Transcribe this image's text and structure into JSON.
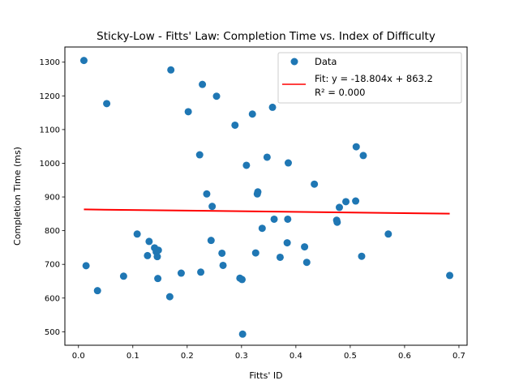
{
  "chart_data": {
    "type": "scatter",
    "title": "Sticky-Low - Fitts' Law: Completion Time vs. Index of Difficulty",
    "xlabel": "Fitts' ID",
    "ylabel": "Completion Time (ms)",
    "xlim": [
      -0.025,
      0.715
    ],
    "ylim": [
      460,
      1345
    ],
    "xticks": [
      0.0,
      0.1,
      0.2,
      0.3,
      0.4,
      0.5,
      0.6,
      0.7
    ],
    "xtick_labels": [
      "0.0",
      "0.1",
      "0.2",
      "0.3",
      "0.4",
      "0.5",
      "0.6",
      "0.7"
    ],
    "yticks": [
      500,
      600,
      700,
      800,
      900,
      1000,
      1100,
      1200,
      1300
    ],
    "ytick_labels": [
      "500",
      "600",
      "700",
      "800",
      "900",
      "1000",
      "1100",
      "1200",
      "1300"
    ],
    "grid": false,
    "legend_position": "top-right",
    "colors": {
      "data": "#1f77b4",
      "fit": "#ff0000"
    },
    "series": [
      {
        "name": "Data",
        "kind": "scatter",
        "x": [
          0.01,
          0.014,
          0.035,
          0.052,
          0.083,
          0.108,
          0.127,
          0.13,
          0.14,
          0.143,
          0.145,
          0.146,
          0.147,
          0.168,
          0.17,
          0.189,
          0.202,
          0.223,
          0.225,
          0.228,
          0.236,
          0.244,
          0.246,
          0.254,
          0.264,
          0.266,
          0.288,
          0.297,
          0.301,
          0.302,
          0.309,
          0.32,
          0.326,
          0.329,
          0.33,
          0.338,
          0.347,
          0.357,
          0.36,
          0.371,
          0.384,
          0.385,
          0.386,
          0.416,
          0.42,
          0.434,
          0.475,
          0.476,
          0.48,
          0.492,
          0.51,
          0.511,
          0.521,
          0.524,
          0.57,
          0.683
        ],
        "y": [
          1305,
          696,
          622,
          1177,
          665,
          790,
          726,
          768,
          749,
          737,
          723,
          658,
          742,
          604,
          1277,
          674,
          1153,
          1025,
          677,
          1234,
          909,
          771,
          872,
          1199,
          733,
          697,
          1113,
          659,
          655,
          493,
          994,
          1146,
          734,
          909,
          915,
          807,
          1018,
          1166,
          834,
          721,
          764,
          834,
          1001,
          752,
          706,
          938,
          831,
          825,
          869,
          886,
          888,
          1049,
          724,
          1023,
          790,
          667
        ]
      },
      {
        "name": "Fit: y = -18.804x + 863.2\nR² = 0.000",
        "legend_lines": [
          "Fit: y = -18.804x + 863.2",
          "R² = 0.000"
        ],
        "kind": "line",
        "slope": -18.804,
        "intercept": 863.2,
        "x": [
          0.01,
          0.683
        ],
        "y": [
          863.0,
          850.4
        ]
      }
    ]
  }
}
